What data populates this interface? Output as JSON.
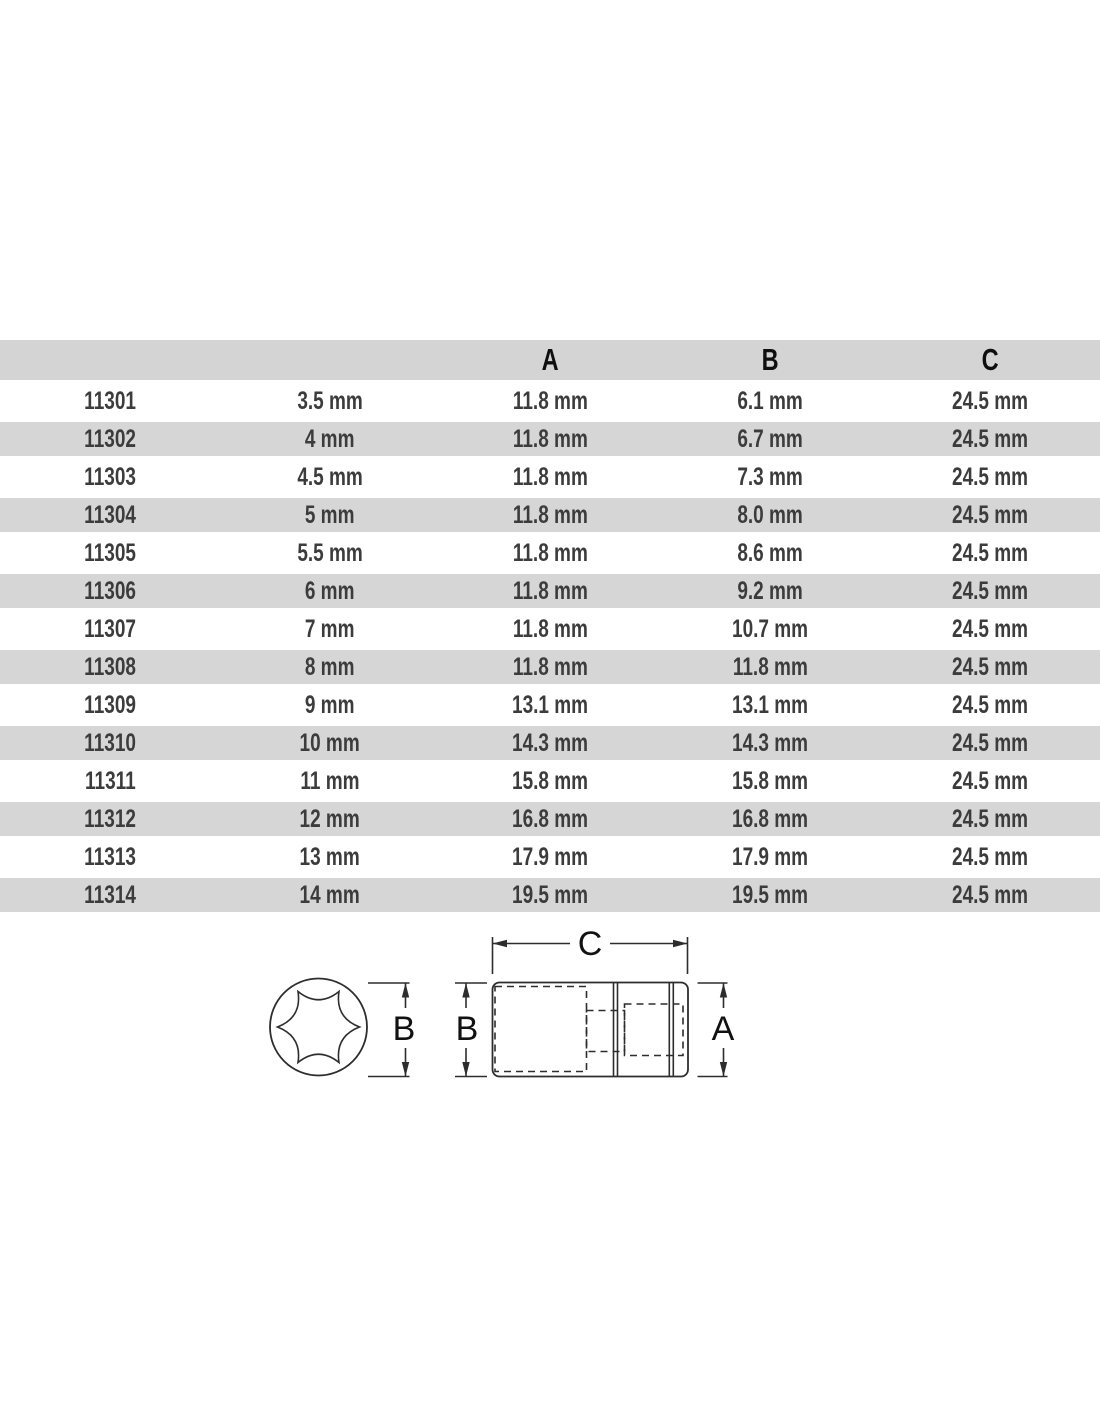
{
  "table": {
    "headers": [
      "",
      "",
      "A",
      "B",
      "C"
    ],
    "rows": [
      [
        "11301",
        "3.5 mm",
        "11.8 mm",
        "6.1 mm",
        "24.5 mm"
      ],
      [
        "11302",
        "4 mm",
        "11.8 mm",
        "6.7 mm",
        "24.5 mm"
      ],
      [
        "11303",
        "4.5 mm",
        "11.8 mm",
        "7.3 mm",
        "24.5 mm"
      ],
      [
        "11304",
        "5 mm",
        "11.8 mm",
        "8.0 mm",
        "24.5 mm"
      ],
      [
        "11305",
        "5.5 mm",
        "11.8 mm",
        "8.6 mm",
        "24.5 mm"
      ],
      [
        "11306",
        "6 mm",
        "11.8 mm",
        "9.2 mm",
        "24.5 mm"
      ],
      [
        "11307",
        "7 mm",
        "11.8 mm",
        "10.7 mm",
        "24.5 mm"
      ],
      [
        "11308",
        "8 mm",
        "11.8 mm",
        "11.8 mm",
        "24.5 mm"
      ],
      [
        "11309",
        "9 mm",
        "13.1 mm",
        "13.1 mm",
        "24.5 mm"
      ],
      [
        "11310",
        "10 mm",
        "14.3 mm",
        "14.3 mm",
        "24.5 mm"
      ],
      [
        "11311",
        "11 mm",
        "15.8 mm",
        "15.8 mm",
        "24.5 mm"
      ],
      [
        "11312",
        "12 mm",
        "16.8 mm",
        "16.8 mm",
        "24.5 mm"
      ],
      [
        "11313",
        "13 mm",
        "17.9 mm",
        "17.9 mm",
        "24.5 mm"
      ],
      [
        "11314",
        "14 mm",
        "19.5 mm",
        "19.5 mm",
        "24.5 mm"
      ]
    ]
  },
  "diagram": {
    "front_view_diameter_label": "B",
    "side_view_bore_label": "B",
    "side_view_length_label": "C",
    "side_view_height_label": "A"
  },
  "colors": {
    "header_bg": "#d4d4d4",
    "alt_row_bg": "#d6d6d6",
    "row_text": "#3c3c3c",
    "header_text": "#0f0f0f",
    "drawing_line": "#2d2d2d"
  }
}
